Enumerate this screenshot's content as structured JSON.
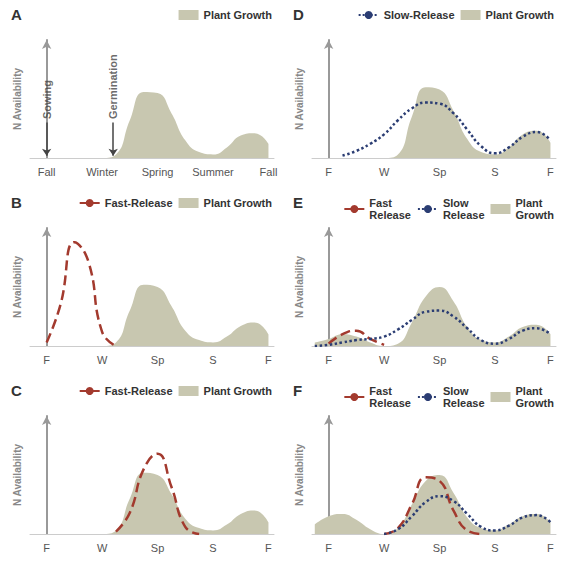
{
  "chart_data": [
    {
      "type": "line",
      "title": "A",
      "y_label": "N Availability",
      "tick_labels": "x",
      "legend": "top-right",
      "x": [
        -0.25,
        0,
        0.25,
        0.5,
        0.75,
        1,
        1.25,
        1.5,
        1.75,
        2,
        2.25,
        2.5,
        2.75,
        3,
        3.25,
        3.5,
        3.75,
        4
      ],
      "xlim": [
        -0.3,
        4.1
      ],
      "xticks": [
        {
          "value": 0,
          "label": "Fall"
        },
        {
          "value": 1,
          "label": "Winter"
        },
        {
          "value": 2,
          "label": "Spring"
        },
        {
          "value": 3,
          "label": "Summer"
        },
        {
          "value": 4,
          "label": "Fall"
        }
      ],
      "ylim": [
        0,
        1
      ],
      "annotations": [
        {
          "text": "Sowing",
          "x": 0
        },
        {
          "text": "Germination",
          "x": 1.2
        }
      ],
      "series": [
        {
          "name": "Plant Growth",
          "type": "area",
          "color": "#c8c7b0",
          "values": [
            0,
            0,
            0,
            0,
            0,
            0,
            0.03,
            0.32,
            0.56,
            0.55,
            0.38,
            0.15,
            0.05,
            0.03,
            0.09,
            0.19,
            0.21,
            0.12
          ]
        }
      ]
    },
    {
      "type": "line",
      "title": "B",
      "y_label": "N Availability",
      "tick_labels": "x",
      "legend": "top-right",
      "x": [
        -0.25,
        0,
        0.25,
        0.5,
        0.75,
        1,
        1.25,
        1.5,
        1.75,
        2,
        2.25,
        2.5,
        2.75,
        3,
        3.25,
        3.5,
        3.75,
        4
      ],
      "xlim": [
        -0.3,
        4.1
      ],
      "xticks": [
        {
          "value": 0,
          "label": "F"
        },
        {
          "value": 1,
          "label": "W"
        },
        {
          "value": 2,
          "label": "Sp"
        },
        {
          "value": 3,
          "label": "S"
        },
        {
          "value": 4,
          "label": "F"
        }
      ],
      "ylim": [
        0,
        1
      ],
      "series": [
        {
          "name": "Fast-Release",
          "type": "line",
          "line_style": "dashed",
          "color": "#a33a2e",
          "values": [
            null,
            0.03,
            0.35,
            0.88,
            0.72,
            0.12,
            0,
            null,
            null,
            null,
            null,
            null,
            null,
            null,
            null,
            null,
            null,
            null
          ]
        },
        {
          "name": "Plant Growth",
          "type": "area",
          "color": "#c8c7b0",
          "values": [
            0,
            0,
            0,
            0,
            0,
            0,
            0.03,
            0.3,
            0.52,
            0.5,
            0.34,
            0.13,
            0.05,
            0.03,
            0.08,
            0.17,
            0.2,
            0.1
          ]
        }
      ]
    },
    {
      "type": "line",
      "title": "C",
      "y_label": "N Availability",
      "tick_labels": "x",
      "legend": "top-right",
      "x": [
        -0.25,
        0,
        0.25,
        0.5,
        0.75,
        1,
        1.25,
        1.5,
        1.75,
        2,
        2.25,
        2.5,
        2.75,
        3,
        3.25,
        3.5,
        3.75,
        4
      ],
      "xlim": [
        -0.3,
        4.1
      ],
      "xticks": [
        {
          "value": 0,
          "label": "F"
        },
        {
          "value": 1,
          "label": "W"
        },
        {
          "value": 2,
          "label": "Sp"
        },
        {
          "value": 3,
          "label": "S"
        },
        {
          "value": 4,
          "label": "F"
        }
      ],
      "ylim": [
        0,
        1
      ],
      "series": [
        {
          "name": "Fast-Release",
          "type": "line",
          "line_style": "dashed",
          "color": "#a33a2e",
          "values": [
            null,
            null,
            null,
            null,
            null,
            null,
            0.02,
            0.18,
            0.55,
            0.68,
            0.4,
            0.06,
            0,
            null,
            null,
            null,
            null,
            null
          ]
        },
        {
          "name": "Plant Growth",
          "type": "area",
          "color": "#c8c7b0",
          "values": [
            0,
            0,
            0,
            0,
            0,
            0,
            0.03,
            0.3,
            0.52,
            0.5,
            0.34,
            0.13,
            0.05,
            0.03,
            0.08,
            0.17,
            0.2,
            0.1
          ]
        }
      ]
    },
    {
      "type": "line",
      "title": "D",
      "y_label": "N Availability",
      "tick_labels": "x",
      "legend": "top-right",
      "x": [
        -0.25,
        0,
        0.25,
        0.5,
        0.75,
        1,
        1.25,
        1.5,
        1.75,
        2,
        2.25,
        2.5,
        2.75,
        3,
        3.25,
        3.5,
        3.75,
        4
      ],
      "xlim": [
        -0.3,
        4.1
      ],
      "xticks": [
        {
          "value": 0,
          "label": "F"
        },
        {
          "value": 1,
          "label": "W"
        },
        {
          "value": 2,
          "label": "Sp"
        },
        {
          "value": 3,
          "label": "S"
        },
        {
          "value": 4,
          "label": "F"
        }
      ],
      "ylim": [
        0,
        1
      ],
      "series": [
        {
          "name": "Slow-Release",
          "type": "line",
          "line_style": "dotted",
          "color": "#2b3d73",
          "values": [
            null,
            null,
            0.02,
            0.06,
            0.12,
            0.2,
            0.32,
            0.42,
            0.47,
            0.46,
            0.38,
            0.24,
            0.1,
            0.04,
            0.09,
            0.18,
            0.22,
            0.15
          ]
        },
        {
          "name": "Plant Growth",
          "type": "area",
          "color": "#c8c7b0",
          "values": [
            0,
            0,
            0,
            0,
            0,
            0,
            0.03,
            0.35,
            0.6,
            0.58,
            0.4,
            0.16,
            0.05,
            0.03,
            0.09,
            0.2,
            0.23,
            0.13
          ]
        }
      ]
    },
    {
      "type": "line",
      "title": "E",
      "y_label": "N Availability",
      "tick_labels": "x",
      "legend": "top-right",
      "x": [
        -0.25,
        0,
        0.25,
        0.5,
        0.75,
        1,
        1.25,
        1.5,
        1.75,
        2,
        2.25,
        2.5,
        2.75,
        3,
        3.25,
        3.5,
        3.75,
        4
      ],
      "xlim": [
        -0.3,
        4.1
      ],
      "xticks": [
        {
          "value": 0,
          "label": "F"
        },
        {
          "value": 1,
          "label": "W"
        },
        {
          "value": 2,
          "label": "Sp"
        },
        {
          "value": 3,
          "label": "S"
        },
        {
          "value": 4,
          "label": "F"
        }
      ],
      "ylim": [
        0,
        1
      ],
      "series": [
        {
          "name": "Fast Release",
          "type": "line",
          "line_style": "dashed",
          "color": "#a33a2e",
          "values": [
            null,
            0.02,
            0.1,
            0.13,
            0.06,
            0.01,
            null,
            null,
            null,
            null,
            null,
            null,
            null,
            null,
            null,
            null,
            null,
            null
          ]
        },
        {
          "name": "Slow Release",
          "type": "line",
          "line_style": "dotted",
          "color": "#2b3d73",
          "values": [
            0,
            0.01,
            0.03,
            0.05,
            0.06,
            0.08,
            0.14,
            0.22,
            0.29,
            0.3,
            0.25,
            0.15,
            0.05,
            0.02,
            0.06,
            0.13,
            0.15,
            0.1
          ]
        },
        {
          "name": "Plant Growth",
          "type": "area",
          "color": "#c8c7b0",
          "values": [
            0.03,
            0.06,
            0.1,
            0.08,
            0.03,
            0,
            0.02,
            0.2,
            0.42,
            0.5,
            0.38,
            0.16,
            0.05,
            0.03,
            0.08,
            0.16,
            0.18,
            0.1
          ]
        }
      ]
    },
    {
      "type": "line",
      "title": "F",
      "y_label": "N Availability",
      "tick_labels": "x",
      "legend": "top-right",
      "x": [
        -0.25,
        0,
        0.25,
        0.5,
        0.75,
        1,
        1.25,
        1.5,
        1.75,
        2,
        2.25,
        2.5,
        2.75,
        3,
        3.25,
        3.5,
        3.75,
        4
      ],
      "xlim": [
        -0.3,
        4.1
      ],
      "xticks": [
        {
          "value": 0,
          "label": "F"
        },
        {
          "value": 1,
          "label": "W"
        },
        {
          "value": 2,
          "label": "Sp"
        },
        {
          "value": 3,
          "label": "S"
        },
        {
          "value": 4,
          "label": "F"
        }
      ],
      "ylim": [
        0,
        1
      ],
      "series": [
        {
          "name": "Fast Release",
          "type": "line",
          "line_style": "dashed",
          "color": "#a33a2e",
          "values": [
            null,
            null,
            null,
            null,
            null,
            0,
            0.05,
            0.25,
            0.48,
            0.45,
            0.2,
            0.03,
            0,
            null,
            null,
            null,
            null,
            null
          ]
        },
        {
          "name": "Slow Release",
          "type": "line",
          "line_style": "dotted",
          "color": "#2b3d73",
          "values": [
            null,
            null,
            null,
            null,
            null,
            0,
            0.04,
            0.15,
            0.27,
            0.32,
            0.28,
            0.17,
            0.06,
            0.03,
            0.07,
            0.14,
            0.16,
            0.1
          ]
        },
        {
          "name": "Plant Growth",
          "type": "area",
          "color": "#c8c7b0",
          "values": [
            0.08,
            0.15,
            0.17,
            0.12,
            0.04,
            0,
            0.05,
            0.25,
            0.45,
            0.5,
            0.35,
            0.14,
            0.05,
            0.03,
            0.08,
            0.15,
            0.17,
            0.1
          ]
        }
      ]
    }
  ]
}
